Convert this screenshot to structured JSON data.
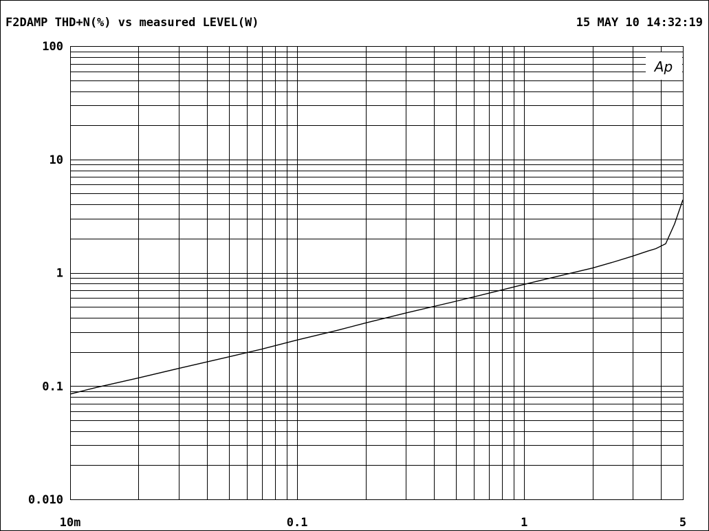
{
  "header": {
    "title": "F2DAMP THD+N(%) vs measured LEVEL(W)",
    "timestamp": "15 MAY 10 14:32:19"
  },
  "logo": {
    "text": "Ap"
  },
  "chart_data": {
    "type": "line",
    "title": "F2DAMP THD+N(%) vs measured LEVEL(W)",
    "xlabel": "",
    "ylabel": "",
    "x_scale": "log",
    "y_scale": "log",
    "xlim": [
      0.01,
      5
    ],
    "ylim": [
      0.01,
      100
    ],
    "grid": true,
    "x_tick_labels": [
      {
        "value": 0.01,
        "label": "10m"
      },
      {
        "value": 0.1,
        "label": "0.1"
      },
      {
        "value": 1,
        "label": "1"
      },
      {
        "value": 5,
        "label": "5"
      }
    ],
    "y_tick_labels": [
      {
        "value": 100,
        "label": "100"
      },
      {
        "value": 10,
        "label": "10"
      },
      {
        "value": 1,
        "label": "1"
      },
      {
        "value": 0.1,
        "label": "0.1"
      },
      {
        "value": 0.01,
        "label": "0.010"
      }
    ],
    "series": [
      {
        "x": [
          0.01,
          0.013,
          0.02,
          0.03,
          0.05,
          0.07,
          0.1,
          0.15,
          0.2,
          0.3,
          0.5,
          0.7,
          1,
          1.5,
          2,
          2.5,
          3,
          3.5,
          3.8,
          4.2,
          4.6,
          5
        ],
        "y": [
          0.085,
          0.097,
          0.118,
          0.143,
          0.181,
          0.212,
          0.255,
          0.31,
          0.36,
          0.44,
          0.56,
          0.66,
          0.79,
          0.96,
          1.1,
          1.25,
          1.4,
          1.55,
          1.63,
          1.8,
          2.7,
          4.4
        ]
      }
    ]
  }
}
